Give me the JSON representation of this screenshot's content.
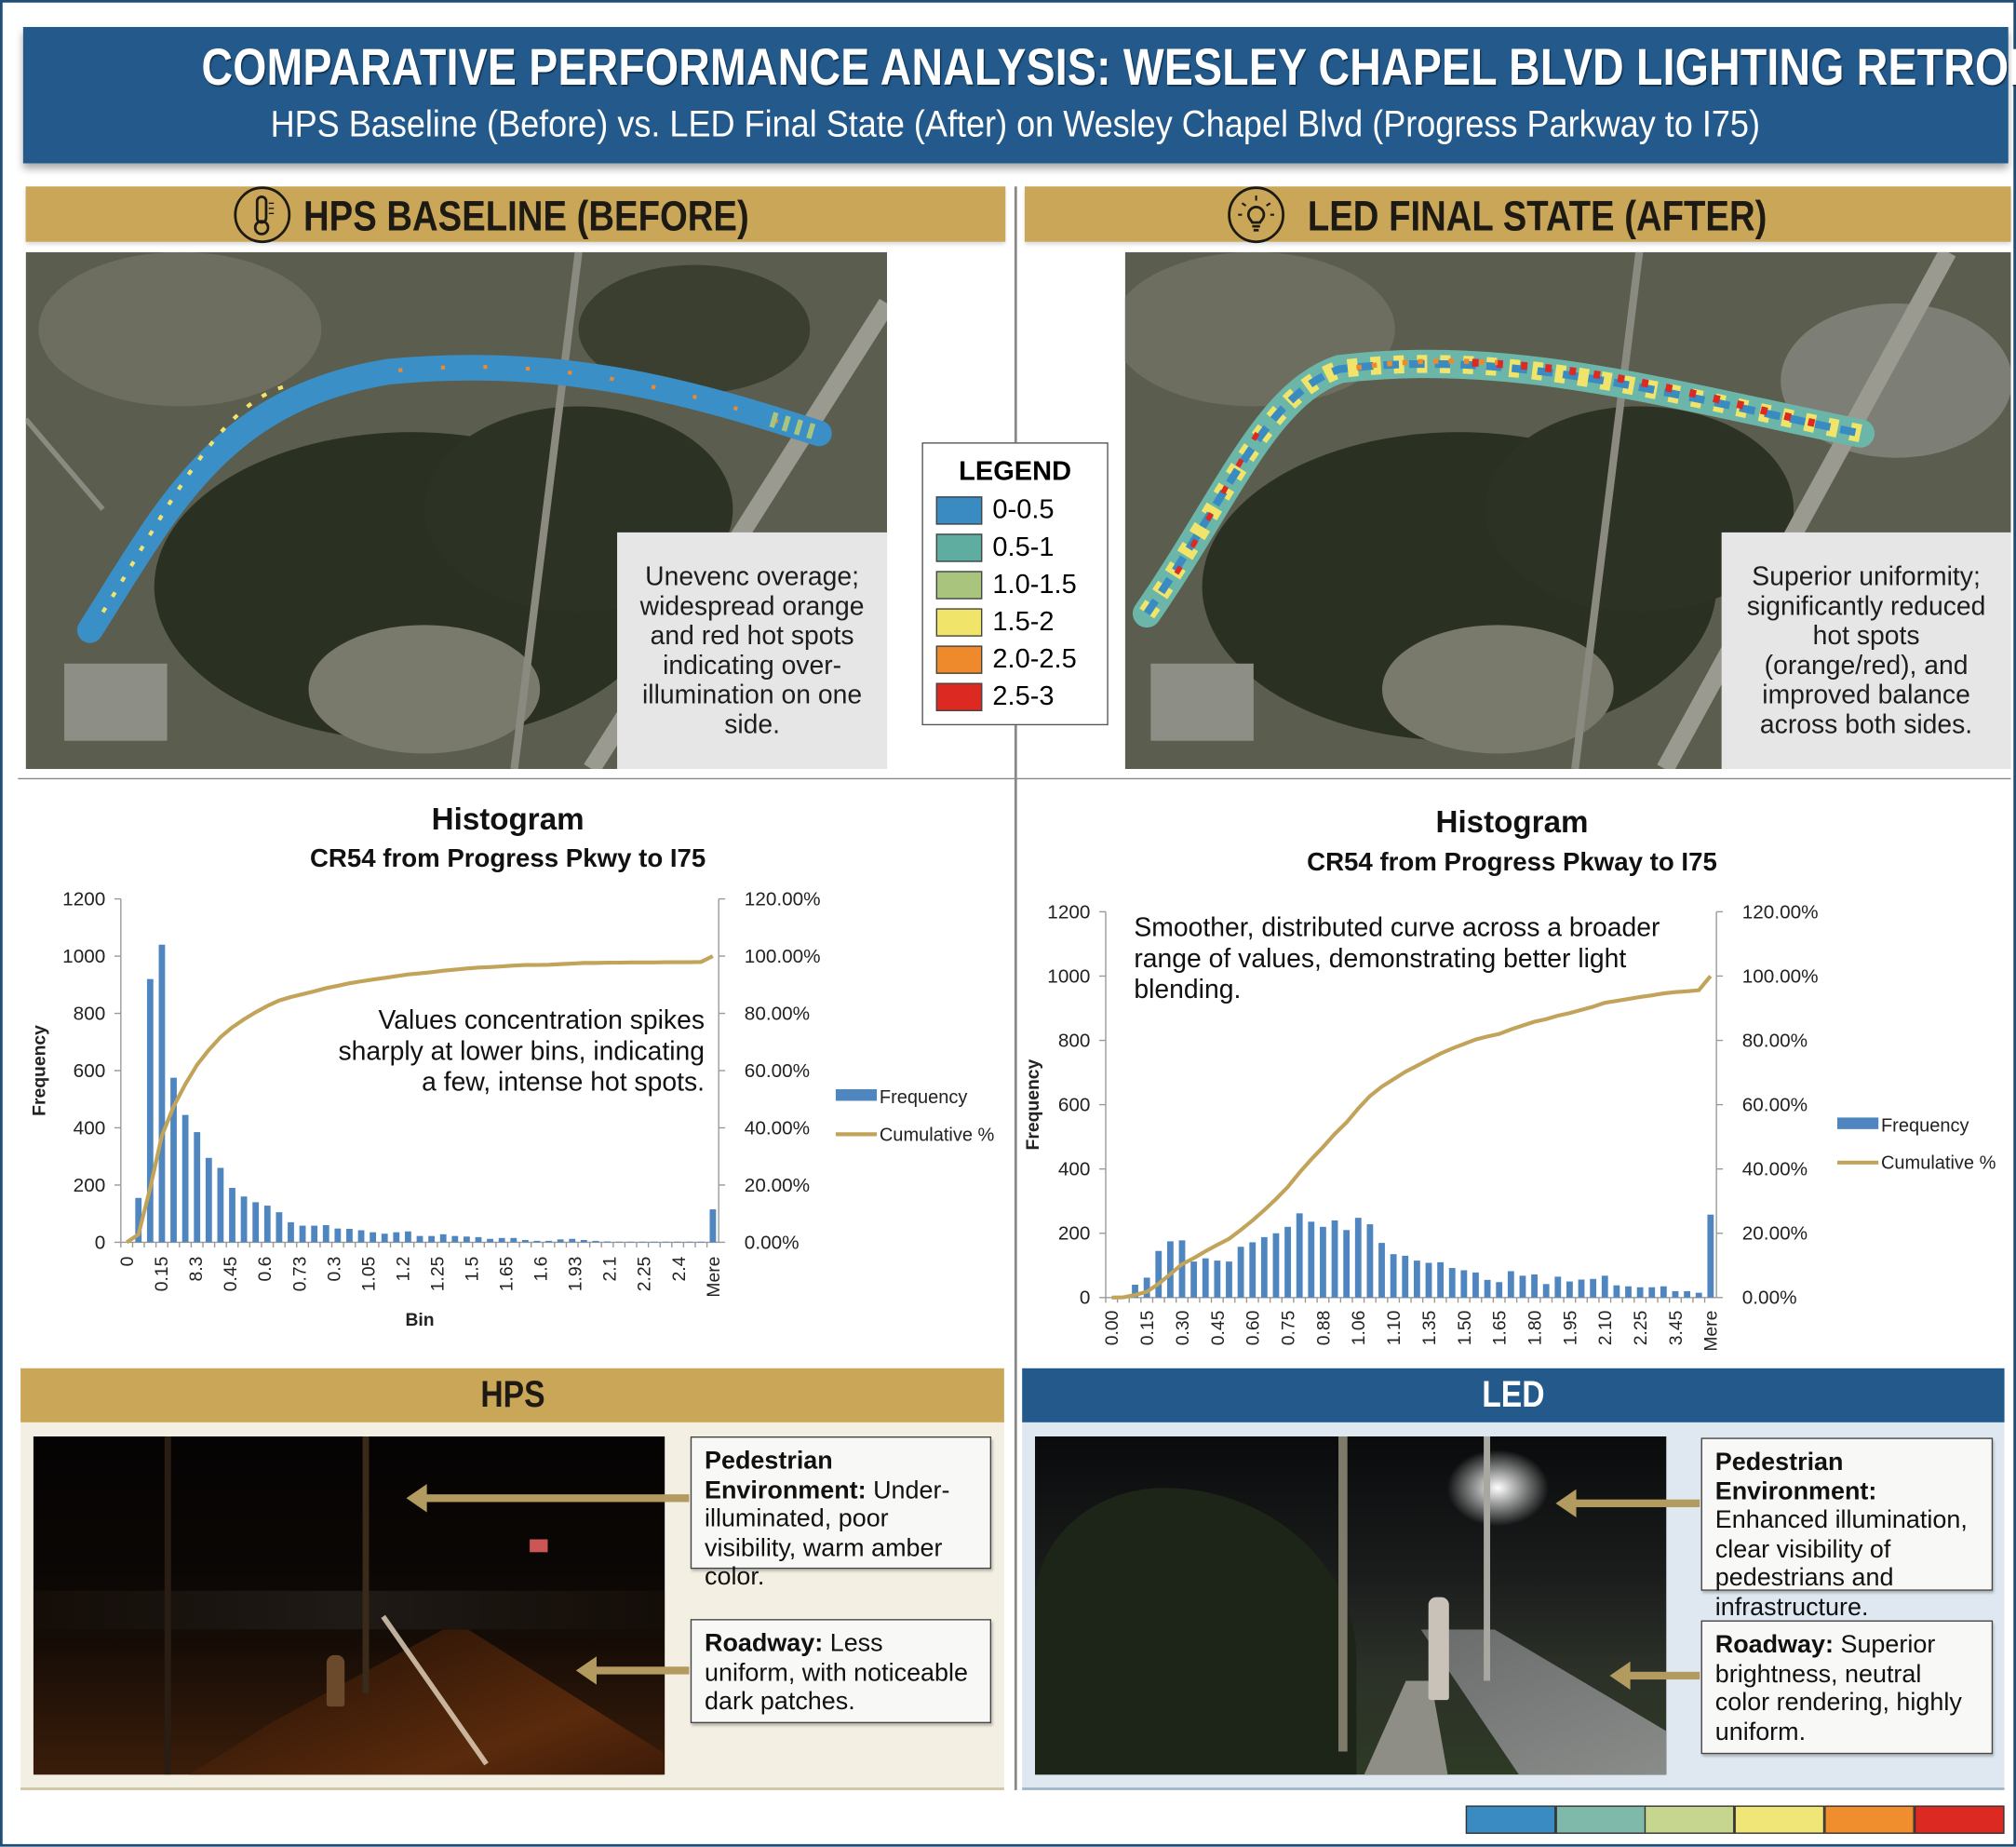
{
  "header": {
    "title": "COMPARATIVE PERFORMANCE ANALYSIS: WESLEY CHAPEL BLVD LIGHTING RETROFIT",
    "subtitle": "HPS Baseline (Before) vs. LED Final State (After) on Wesley Chapel Blvd (Progress Parkway to I75)"
  },
  "before": {
    "heading": "HPS BASELINE (BEFORE)",
    "icon": "thermometer-icon",
    "map_note": "Unevenc overage; widespread orange and red hot spots indicating over-illumination on one side."
  },
  "after": {
    "heading": "LED FINAL STATE (AFTER)",
    "icon": "lightbulb-icon",
    "map_note": "Superior uniformity; significantly reduced hot spots (orange/red), and improved balance across both sides."
  },
  "legend": {
    "title": "LEGEND",
    "items": [
      {
        "label": "0-0.5",
        "color": "#3a8bc2"
      },
      {
        "label": "0.5-1",
        "color": "#5fada0"
      },
      {
        "label": "1.0-1.5",
        "color": "#a9c57d"
      },
      {
        "label": "1.5-2",
        "color": "#f1e46a"
      },
      {
        "label": "2.0-2.5",
        "color": "#ee8a2c"
      },
      {
        "label": "2.5-3",
        "color": "#dc2a22"
      }
    ]
  },
  "chart_data": [
    {
      "type": "bar+line",
      "title": "Histogram",
      "subtitle": "CR54 from Progress Pkwy to I75",
      "xlabel": "Bin",
      "ylabel": "Frequency",
      "ylim": [
        0,
        1200
      ],
      "y_ticks": [
        "0",
        "200",
        "400",
        "600",
        "800",
        "1000",
        "1200"
      ],
      "y2lim": [
        0,
        120
      ],
      "y2_ticks": [
        "0.00%",
        "20.00%",
        "40.00%",
        "60.00%",
        "80.00%",
        "100.00%",
        "120.00%"
      ],
      "x_tick_labels": [
        "0",
        "0.15",
        "8.3",
        "0.45",
        "0.6",
        "0.73",
        "0.3",
        "1.05",
        "1.2",
        "1.25",
        "1.5",
        "1.65",
        "1.6",
        "1.93",
        "2.1",
        "2.25",
        "2.4",
        "Mere"
      ],
      "annotation": "Values concentration spikes sharply at lower bins, indicating a few, intense hot spots.",
      "legend_position": "right",
      "series": [
        {
          "name": "Frequency",
          "kind": "bar",
          "color": "#4f86bf",
          "values": [
            0,
            155,
            920,
            1040,
            575,
            445,
            385,
            295,
            260,
            190,
            160,
            140,
            128,
            105,
            70,
            58,
            58,
            60,
            48,
            47,
            42,
            35,
            30,
            35,
            38,
            22,
            22,
            28,
            22,
            20,
            18,
            12,
            15,
            15,
            8,
            5,
            5,
            10,
            12,
            8,
            5,
            3,
            2,
            2,
            2,
            2,
            2,
            2,
            2,
            2,
            115
          ]
        },
        {
          "name": "Cumulative %",
          "kind": "line",
          "color": "#c2a35a",
          "values": [
            0,
            2.7,
            18.9,
            37.2,
            47.4,
            55.2,
            62.0,
            67.2,
            71.7,
            75.1,
            77.9,
            80.4,
            82.6,
            84.5,
            85.7,
            86.7,
            87.7,
            88.8,
            89.6,
            90.5,
            91.2,
            91.8,
            92.4,
            93.0,
            93.6,
            94.0,
            94.4,
            94.9,
            95.3,
            95.7,
            96.0,
            96.2,
            96.4,
            96.7,
            96.9,
            96.9,
            97.0,
            97.2,
            97.4,
            97.6,
            97.6,
            97.7,
            97.7,
            97.8,
            97.8,
            97.8,
            97.9,
            97.9,
            97.9,
            98.0,
            100
          ]
        }
      ]
    },
    {
      "type": "bar+line",
      "title": "Histogram",
      "subtitle": "CR54 from Progress Pkway to I75",
      "xlabel": "",
      "ylabel": "Frequency",
      "ylim": [
        0,
        1200
      ],
      "y_ticks": [
        "0",
        "200",
        "400",
        "600",
        "800",
        "1000",
        "1200"
      ],
      "y2lim": [
        0,
        120
      ],
      "y2_ticks": [
        "0.00%",
        "20.00%",
        "40.00%",
        "60.00%",
        "80.00%",
        "100.00%",
        "120.00%"
      ],
      "x_tick_labels": [
        "0.00",
        "0.15",
        "0.30",
        "0.45",
        "0.60",
        "0.75",
        "0.88",
        "1.06",
        "1.10",
        "1.35",
        "1.50",
        "1.65",
        "1.80",
        "1.95",
        "2.10",
        "2.25",
        "3.45",
        "Mere"
      ],
      "annotation": "Smoother, distributed curve across a broader range of values, demonstrating better light blending.",
      "legend_position": "right",
      "series": [
        {
          "name": "Frequency",
          "kind": "bar",
          "color": "#4f86bf",
          "values": [
            0,
            5,
            40,
            62,
            145,
            175,
            178,
            112,
            122,
            115,
            112,
            158,
            172,
            188,
            200,
            220,
            262,
            236,
            220,
            240,
            210,
            248,
            228,
            170,
            135,
            130,
            115,
            108,
            110,
            92,
            85,
            78,
            55,
            48,
            82,
            68,
            72,
            42,
            65,
            50,
            56,
            58,
            68,
            38,
            35,
            32,
            32,
            35,
            20,
            20,
            15,
            258
          ]
        },
        {
          "name": "Cumulative %",
          "kind": "line",
          "color": "#c2a35a",
          "values": [
            0,
            0.1,
            0.8,
            1.8,
            4.3,
            7.3,
            10.4,
            12.3,
            14.4,
            16.4,
            18.3,
            21.0,
            24.0,
            27.2,
            30.7,
            34.4,
            38.9,
            43.0,
            46.8,
            50.9,
            54.5,
            58.8,
            62.7,
            65.6,
            67.9,
            70.2,
            72.1,
            74.0,
            75.9,
            77.5,
            78.9,
            80.3,
            81.2,
            82.0,
            83.4,
            84.6,
            85.8,
            86.6,
            87.7,
            88.5,
            89.5,
            90.5,
            91.7,
            92.3,
            92.9,
            93.5,
            94.0,
            94.6,
            95.0,
            95.3,
            95.6,
            100
          ]
        }
      ]
    }
  ],
  "bottom": {
    "hps": {
      "title": "HPS",
      "color": "#c9a658",
      "callouts": [
        {
          "label": "Pedestrian Environment:",
          "text": "Under-illuminated, poor visibility, warm amber color."
        },
        {
          "label": "Roadway:",
          "text": "Less uniform, with noticeable dark patches."
        }
      ]
    },
    "led": {
      "title": "LED",
      "color": "#235a8b",
      "callouts": [
        {
          "label": "Pedestrian Environment:",
          "text": "Enhanced illumination, clear visibility of pedestrians and infrastructure."
        },
        {
          "label": "Roadway:",
          "text": "Superior brightness, neutral color rendering, highly uniform."
        }
      ]
    }
  },
  "colorbar": [
    "#3a8bc2",
    "#7fb9a9",
    "#c7d68e",
    "#f0e577",
    "#f08d2d",
    "#dc2a22"
  ]
}
